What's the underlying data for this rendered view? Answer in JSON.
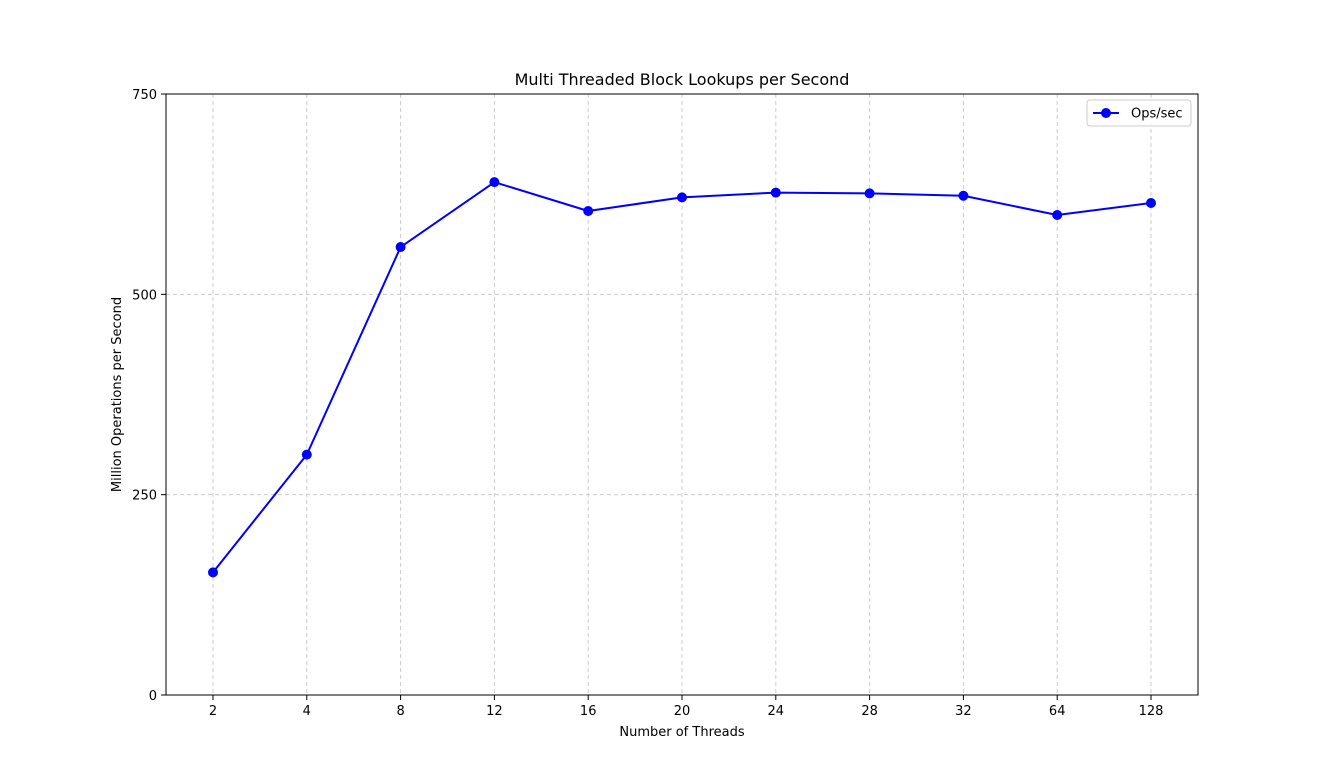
{
  "chart_data": {
    "type": "line",
    "title": "Multi Threaded Block Lookups per Second",
    "xlabel": "Number of Threads",
    "ylabel": "Million Operations per Second",
    "categories": [
      "2",
      "4",
      "8",
      "12",
      "16",
      "20",
      "24",
      "28",
      "32",
      "64",
      "128"
    ],
    "series": [
      {
        "name": "Ops/sec",
        "values": [
          153,
          300,
          559,
          640,
          604,
          621,
          627,
          626,
          623,
          599,
          614
        ],
        "color": "#0000ff",
        "marker": "circle"
      }
    ],
    "ylim": [
      0,
      750
    ],
    "yticks": [
      "0",
      "250",
      "500",
      "750"
    ],
    "grid": true,
    "legend_position": "top-right"
  }
}
